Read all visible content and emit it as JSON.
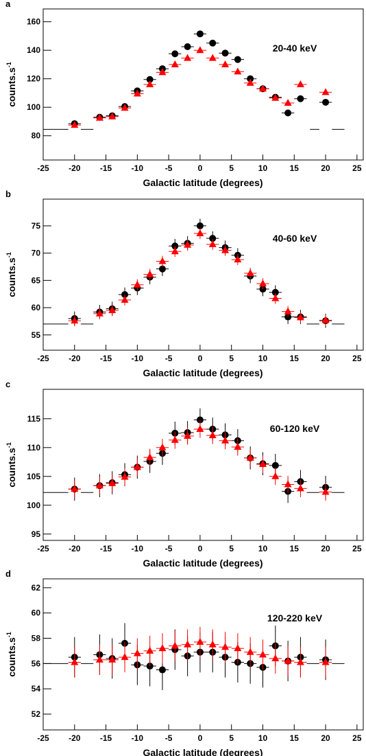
{
  "chart_data": [
    {
      "type": "errorbar",
      "panel": "a",
      "label": "20-40 keV",
      "xlabel": "Galactic latitude (degrees)",
      "ylabel": "counts.s",
      "ylabel_sup": "-1",
      "xlim": [
        -25,
        26
      ],
      "xticks": [
        -25,
        -20,
        -15,
        -10,
        -5,
        0,
        5,
        10,
        15,
        20,
        25
      ],
      "ylim": [
        63,
        169
      ],
      "yticks": [
        80,
        100,
        120,
        140,
        160
      ],
      "x": [
        -20,
        -16,
        -14,
        -12,
        -10,
        -8,
        -6,
        -4,
        -2,
        0,
        2,
        4,
        6,
        8,
        10,
        12,
        14,
        16,
        20
      ],
      "xerr": 1,
      "baseline": {
        "y": 84.5,
        "segments": [
          [
            -25,
            -21
          ],
          [
            -19,
            -17
          ],
          [
            17.5,
            19
          ],
          [
            21,
            23
          ]
        ]
      },
      "series": [
        {
          "color": "#000000",
          "marker": "circle",
          "error": 1.5,
          "values": [
            88.5,
            93,
            94,
            100.5,
            111.5,
            119.5,
            127,
            137.5,
            142.5,
            151.5,
            145,
            138,
            133.5,
            120,
            113,
            107,
            96,
            106,
            103.5
          ]
        },
        {
          "color": "#ff0000",
          "marker": "triangle",
          "error": 1.5,
          "values": [
            87.5,
            92.5,
            93.5,
            99.5,
            109.5,
            116,
            124.5,
            130,
            134.5,
            140,
            134.5,
            130,
            125,
            117,
            113,
            106.5,
            103,
            116,
            110.5
          ]
        }
      ]
    },
    {
      "type": "errorbar",
      "panel": "b",
      "label": "40-60 keV",
      "xlabel": "Galactic latitude (degrees)",
      "ylabel": "counts.s",
      "ylabel_sup": "-1",
      "xlim": [
        -25,
        26
      ],
      "xticks": [
        -25,
        -20,
        -15,
        -10,
        -5,
        0,
        5,
        10,
        15,
        20,
        25
      ],
      "ylim": [
        52.2,
        79.9
      ],
      "yticks": [
        55,
        60,
        65,
        70,
        75
      ],
      "x": [
        -20,
        -16,
        -14,
        -12,
        -10,
        -8,
        -6,
        -4,
        -2,
        0,
        2,
        4,
        6,
        8,
        10,
        12,
        14,
        16,
        20
      ],
      "xerr": 1,
      "baseline": {
        "y": 57,
        "segments": [
          [
            -25,
            -21
          ],
          [
            -19,
            -17
          ],
          [
            17,
            19
          ],
          [
            21,
            23
          ]
        ]
      },
      "series": [
        {
          "color": "#000000",
          "marker": "circle",
          "error": 1.3,
          "values": [
            58,
            59.2,
            59.8,
            62.4,
            63.6,
            65.6,
            67.1,
            71.3,
            71.8,
            75,
            72.7,
            71,
            69.6,
            65.8,
            63.4,
            62.8,
            58.3,
            58.3,
            57.6
          ]
        },
        {
          "color": "#ff0000",
          "marker": "triangle",
          "error": 1.0,
          "values": [
            57.6,
            58.9,
            59.5,
            61.4,
            64.2,
            66.1,
            68.5,
            70.3,
            71.5,
            73.6,
            71.6,
            70.5,
            68.8,
            66.3,
            64.4,
            61.7,
            59.3,
            58.2,
            57.7
          ]
        }
      ]
    },
    {
      "type": "errorbar",
      "panel": "c",
      "label": "60-120 keV",
      "xlabel": "Galactic latitude (degrees)",
      "ylabel": "counts.s",
      "ylabel_sup": "-1",
      "xlim": [
        -25,
        26
      ],
      "xticks": [
        -25,
        -20,
        -15,
        -10,
        -5,
        0,
        5,
        10,
        15,
        20,
        25
      ],
      "ylim": [
        93.9,
        120.1
      ],
      "yticks": [
        95,
        100,
        105,
        110,
        115
      ],
      "x": [
        -20,
        -16,
        -14,
        -12,
        -10,
        -8,
        -6,
        -4,
        -2,
        0,
        2,
        4,
        6,
        8,
        10,
        12,
        14,
        16,
        20
      ],
      "xerr": 1,
      "baseline": {
        "y": 102.2,
        "segments": [
          [
            -25,
            -21
          ],
          [
            -19,
            -17
          ],
          [
            17,
            19
          ],
          [
            21,
            23
          ]
        ]
      },
      "series": [
        {
          "color": "#000000",
          "marker": "circle",
          "error": 2.0,
          "values": [
            102.8,
            103.4,
            103.9,
            105.3,
            106.6,
            107.6,
            109,
            112.5,
            112.6,
            114.8,
            113.2,
            112.2,
            111.2,
            108.2,
            107.2,
            106.9,
            102.4,
            104.1,
            103.1
          ]
        },
        {
          "color": "#ff0000",
          "marker": "triangle",
          "error": 1.5,
          "values": [
            102.8,
            103.4,
            103.8,
            104.9,
            106.6,
            108.3,
            110,
            111.3,
            112,
            113.2,
            112.1,
            111.2,
            110.1,
            108.2,
            107.1,
            105,
            103.6,
            102.9,
            102.3
          ]
        }
      ]
    },
    {
      "type": "errorbar",
      "panel": "d",
      "label": "120-220 keV",
      "xlabel": "Galactic latitude (degrees)",
      "ylabel": "counts.s",
      "ylabel_sup": "-1",
      "xlim": [
        -25,
        26
      ],
      "xticks": [
        -25,
        -20,
        -15,
        -10,
        -5,
        0,
        5,
        10,
        15,
        20,
        25
      ],
      "ylim": [
        50.75,
        62.7
      ],
      "yticks": [
        52,
        54,
        56,
        58,
        60,
        62
      ],
      "x": [
        -20,
        -16,
        -14,
        -12,
        -10,
        -8,
        -6,
        -4,
        -2,
        0,
        2,
        4,
        6,
        8,
        10,
        12,
        14,
        16,
        20
      ],
      "xerr": 1,
      "baseline": {
        "y": 56,
        "segments": [
          [
            -25,
            -21
          ],
          [
            -19,
            -17
          ],
          [
            17,
            19
          ],
          [
            21,
            23
          ]
        ]
      },
      "series": [
        {
          "color": "#000000",
          "marker": "circle",
          "error": 1.6,
          "values": [
            56.5,
            56.7,
            56.4,
            57.6,
            55.9,
            55.8,
            55.5,
            57.1,
            56.6,
            56.9,
            56.9,
            56.5,
            56.1,
            56,
            55.7,
            57.4,
            56.2,
            56.5,
            56.3
          ]
        },
        {
          "color": "#ff0000",
          "marker": "triangle",
          "error": 1.2,
          "values": [
            56.1,
            56.3,
            56.3,
            56.5,
            56.8,
            57,
            57.2,
            57.4,
            57.5,
            57.7,
            57.5,
            57.3,
            57.2,
            56.9,
            56.7,
            56.4,
            56.2,
            56.1,
            56.1
          ]
        }
      ]
    }
  ]
}
